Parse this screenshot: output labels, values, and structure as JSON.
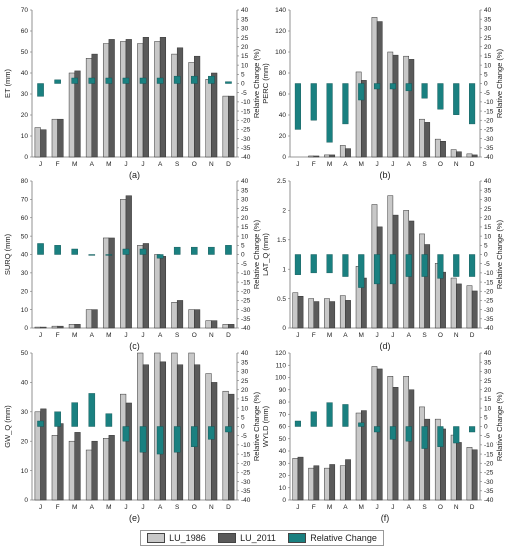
{
  "months": [
    "J",
    "F",
    "M",
    "A",
    "M",
    "J",
    "J",
    "A",
    "S",
    "O",
    "N",
    "D"
  ],
  "colors": {
    "lu1986": "#c8c8c8",
    "lu2011": "#5a5a5a",
    "change": "#1a8080",
    "edge": "#333333"
  },
  "legend": [
    {
      "label": "LU_1986",
      "color": "#c8c8c8"
    },
    {
      "label": "LU_2011",
      "color": "#5a5a5a"
    },
    {
      "label": "Relative Change",
      "color": "#1a8080"
    }
  ],
  "chart_data": [
    {
      "type": "bar",
      "label": "(a)",
      "ylabel": "ET (mm)",
      "ylabel2": "Relative Change (%)",
      "ylim": [
        0,
        70
      ],
      "yticks": [
        0,
        10,
        20,
        30,
        40,
        50,
        60,
        70
      ],
      "y2lim": [
        -40,
        40
      ],
      "y2ticks": [
        -40,
        -35,
        -30,
        -25,
        -20,
        -15,
        -10,
        -5,
        0,
        5,
        10,
        15,
        20,
        25,
        30,
        35,
        40
      ],
      "categories": [
        "J",
        "F",
        "M",
        "A",
        "M",
        "J",
        "J",
        "A",
        "S",
        "O",
        "N",
        "D"
      ],
      "series": [
        {
          "name": "LU_1986",
          "values": [
            14,
            18,
            40,
            47,
            54,
            55,
            54,
            55,
            49,
            45,
            37,
            29
          ]
        },
        {
          "name": "LU_2011",
          "values": [
            13,
            18,
            41,
            49,
            56,
            56,
            57,
            57,
            52,
            48,
            40,
            29
          ]
        },
        {
          "name": "Relative Change",
          "values": [
            -7,
            2,
            3,
            3,
            3,
            3,
            3,
            3,
            4,
            4,
            4,
            1
          ]
        }
      ]
    },
    {
      "type": "bar",
      "label": "(b)",
      "ylabel": "PERC (mm)",
      "ylabel2": "Relative Change (%)",
      "ylim": [
        0,
        140
      ],
      "yticks": [
        0,
        20,
        40,
        60,
        80,
        100,
        120,
        140
      ],
      "y2lim": [
        -40,
        40
      ],
      "y2ticks": [
        -40,
        -35,
        -30,
        -25,
        -20,
        -15,
        -10,
        -5,
        0,
        5,
        10,
        15,
        20,
        25,
        30,
        35,
        40
      ],
      "categories": [
        "J",
        "F",
        "M",
        "A",
        "M",
        "J",
        "J",
        "A",
        "S",
        "O",
        "N",
        "D"
      ],
      "series": [
        {
          "name": "LU_1986",
          "values": [
            0,
            1,
            2,
            11,
            81,
            133,
            100,
            96,
            36,
            17,
            7,
            3
          ]
        },
        {
          "name": "LU_2011",
          "values": [
            0,
            1,
            2,
            8,
            73,
            129,
            97,
            93,
            33,
            15,
            5,
            2
          ]
        },
        {
          "name": "Relative Change",
          "values": [
            -25,
            -20,
            -32,
            -22,
            -9,
            -3,
            -3,
            -4,
            -8,
            -14,
            -17,
            -22
          ]
        }
      ]
    },
    {
      "type": "bar",
      "label": "(c)",
      "ylabel": "SURQ (mm)",
      "ylabel2": "Relative Change (%)",
      "ylim": [
        0,
        80
      ],
      "yticks": [
        0,
        10,
        20,
        30,
        40,
        50,
        60,
        70,
        80
      ],
      "y2lim": [
        -40,
        40
      ],
      "y2ticks": [
        -40,
        -35,
        -30,
        -25,
        -20,
        -15,
        -10,
        -5,
        0,
        5,
        10,
        15,
        20,
        25,
        30,
        35,
        40
      ],
      "categories": [
        "J",
        "F",
        "M",
        "A",
        "M",
        "J",
        "J",
        "A",
        "S",
        "O",
        "N",
        "D"
      ],
      "series": [
        {
          "name": "LU_1986",
          "values": [
            0.5,
            1,
            2,
            10,
            49,
            70,
            45,
            40,
            14,
            10,
            4,
            2
          ]
        },
        {
          "name": "LU_2011",
          "values": [
            0.5,
            1,
            2,
            10,
            49,
            72,
            46,
            39,
            15,
            10,
            4,
            2
          ]
        },
        {
          "name": "Relative Change",
          "values": [
            6,
            5,
            3,
            0,
            0,
            3,
            3,
            -2,
            4,
            4,
            4,
            5
          ]
        }
      ]
    },
    {
      "type": "bar",
      "label": "(d)",
      "ylabel": "LAT_Q (mm)",
      "ylabel2": "Relative Change (%)",
      "ylim": [
        0,
        2.5
      ],
      "yticks": [
        0,
        0.5,
        1,
        1.5,
        2,
        2.5
      ],
      "y2lim": [
        -40,
        40
      ],
      "y2ticks": [
        -40,
        -35,
        -30,
        -25,
        -20,
        -15,
        -10,
        -5,
        0,
        5,
        10,
        15,
        20,
        25,
        30,
        35,
        40
      ],
      "categories": [
        "J",
        "F",
        "M",
        "A",
        "M",
        "J",
        "J",
        "A",
        "S",
        "O",
        "N",
        "D"
      ],
      "series": [
        {
          "name": "LU_1986",
          "values": [
            0.6,
            0.5,
            0.5,
            0.55,
            1.05,
            2.1,
            2.25,
            2.0,
            1.6,
            1.1,
            0.85,
            0.72
          ]
        },
        {
          "name": "LU_2011",
          "values": [
            0.54,
            0.45,
            0.45,
            0.47,
            0.85,
            1.72,
            1.92,
            1.82,
            1.42,
            0.95,
            0.75,
            0.63
          ]
        },
        {
          "name": "Relative Change",
          "values": [
            -11,
            -10,
            -10,
            -12,
            -18,
            -16,
            -16,
            -12,
            -12,
            -13,
            -12,
            -12
          ]
        }
      ]
    },
    {
      "type": "bar",
      "label": "(e)",
      "ylabel": "GW_Q (mm)",
      "ylabel2": "Relative Change (%)",
      "ylim": [
        0,
        50
      ],
      "yticks": [
        0,
        10,
        20,
        30,
        40,
        50
      ],
      "y2lim": [
        -40,
        40
      ],
      "y2ticks": [
        -40,
        -35,
        -30,
        -25,
        -20,
        -15,
        -10,
        -5,
        0,
        5,
        10,
        15,
        20,
        25,
        30,
        35,
        40
      ],
      "categories": [
        "J",
        "F",
        "M",
        "A",
        "M",
        "J",
        "J",
        "A",
        "S",
        "O",
        "N",
        "D"
      ],
      "series": [
        {
          "name": "LU_1986",
          "values": [
            30,
            22,
            20,
            17,
            21,
            36,
            50,
            50,
            50,
            50,
            43,
            37
          ]
        },
        {
          "name": "LU_2011",
          "values": [
            31,
            26,
            23,
            20,
            22,
            33,
            46,
            47,
            46,
            46,
            40,
            36
          ]
        },
        {
          "name": "Relative Change",
          "values": [
            3,
            8,
            13,
            18,
            7,
            -8,
            -14,
            -15,
            -14,
            -11,
            -7,
            -3
          ]
        }
      ]
    },
    {
      "type": "bar",
      "label": "(f)",
      "ylabel": "WYLD (mm)",
      "ylabel2": "Relative Change (%)",
      "ylim": [
        0,
        120
      ],
      "yticks": [
        0,
        10,
        20,
        30,
        40,
        50,
        60,
        70,
        80,
        90,
        100,
        110,
        120
      ],
      "y2lim": [
        -40,
        40
      ],
      "y2ticks": [
        -40,
        -35,
        -30,
        -25,
        -20,
        -15,
        -10,
        -5,
        0,
        5,
        10,
        15,
        20,
        25,
        30,
        35,
        40
      ],
      "categories": [
        "J",
        "F",
        "M",
        "A",
        "M",
        "J",
        "J",
        "A",
        "S",
        "O",
        "N",
        "D"
      ],
      "series": [
        {
          "name": "LU_1986",
          "values": [
            34,
            26,
            26,
            28,
            71,
            109,
            101,
            101,
            76,
            66,
            53,
            43
          ]
        },
        {
          "name": "LU_2011",
          "values": [
            35,
            28,
            29,
            33,
            73,
            107,
            92,
            90,
            66,
            58,
            47,
            41
          ]
        },
        {
          "name": "Relative Change",
          "values": [
            3,
            8,
            13,
            12,
            2,
            -3,
            -7,
            -8,
            -12,
            -11,
            -9,
            -3
          ]
        }
      ]
    }
  ]
}
